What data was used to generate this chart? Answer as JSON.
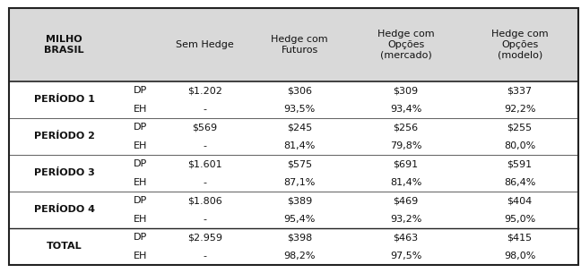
{
  "title_col1": "MILHO\nBRASIL",
  "col_headers": [
    "",
    "",
    "Sem Hedge",
    "Hedge com\nFuturos",
    "Hedge com\nOpções\n(mercado)",
    "Hedge com\nOpções\n(modelo)"
  ],
  "rows": [
    {
      "period": "PERÍODO 1",
      "type": "DP",
      "values": [
        "$1.202",
        "$306",
        "$309",
        "$337"
      ]
    },
    {
      "period": "",
      "type": "EH",
      "values": [
        "-",
        "93,5%",
        "93,4%",
        "92,2%"
      ]
    },
    {
      "period": "PERÍODO 2",
      "type": "DP",
      "values": [
        "$569",
        "$245",
        "$256",
        "$255"
      ]
    },
    {
      "period": "",
      "type": "EH",
      "values": [
        "-",
        "81,4%",
        "79,8%",
        "80,0%"
      ]
    },
    {
      "period": "PERÍODO 3",
      "type": "DP",
      "values": [
        "$1.601",
        "$575",
        "$691",
        "$591"
      ]
    },
    {
      "period": "",
      "type": "EH",
      "values": [
        "-",
        "87,1%",
        "81,4%",
        "86,4%"
      ]
    },
    {
      "period": "PERÍODO 4",
      "type": "DP",
      "values": [
        "$1.806",
        "$389",
        "$469",
        "$404"
      ]
    },
    {
      "period": "",
      "type": "EH",
      "values": [
        "-",
        "95,4%",
        "93,2%",
        "95,0%"
      ]
    },
    {
      "period": "TOTAL",
      "type": "DP",
      "values": [
        "$2.959",
        "$398",
        "$463",
        "$415"
      ]
    },
    {
      "period": "",
      "type": "EH",
      "values": [
        "-",
        "98,2%",
        "97,5%",
        "98,0%"
      ]
    }
  ],
  "header_bg": "#d9d9d9",
  "separator_color": "#666666",
  "outer_border_color": "#222222",
  "font_size_header": 8.0,
  "font_size_body": 8.0,
  "col_props": [
    0.195,
    0.072,
    0.155,
    0.178,
    0.195,
    0.205
  ]
}
